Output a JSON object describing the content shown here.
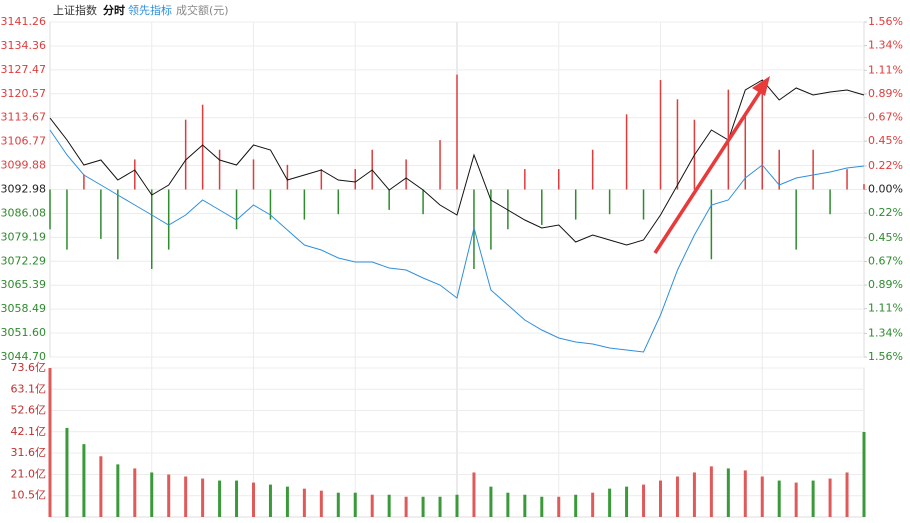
{
  "header": {
    "mode": "分时"
  },
  "chart_data": [
    {
      "type": "line",
      "ylim": [
        3044.7,
        3141.26
      ],
      "yticks": [
        3141.26,
        3134.36,
        3127.47,
        3120.57,
        3113.67,
        3106.77,
        3099.88,
        3092.98,
        3086.08,
        3079.19,
        3072.29,
        3065.39,
        3058.49,
        {
          "value": 3051.6,
          "label": "3051.60"
        },
        {
          "value": 3044.7,
          "label": "3044.70"
        }
      ],
      "y2lim": [
        -1.56,
        1.56
      ],
      "y2ticks": [
        {
          "value": 1.56,
          "label": "1.56%"
        },
        {
          "value": 1.34,
          "label": "1.34%"
        },
        {
          "value": 1.11,
          "label": "1.11%"
        },
        {
          "value": 0.89,
          "label": "0.89%"
        },
        {
          "value": 0.67,
          "label": "0.67%"
        },
        {
          "value": 0.45,
          "label": "0.45%"
        },
        {
          "value": 0.22,
          "label": "0.22%"
        },
        {
          "value": 0,
          "label": "0.00%"
        },
        {
          "value": -0.22,
          "label": "0.22%"
        },
        {
          "value": -0.45,
          "label": "0.45%"
        },
        {
          "value": -0.67,
          "label": "0.67%"
        },
        {
          "value": -0.89,
          "label": "0.89%"
        },
        {
          "value": -1.11,
          "label": "1.11%"
        },
        {
          "value": -1.34,
          "label": "1.34%"
        },
        {
          "value": -1.56,
          "label": "1.56%"
        }
      ],
      "colors": [
        "#e03c3c",
        "#2e8b2e"
      ],
      "series": [
        {
          "name": "上证指数",
          "color": "#111111",
          "values": [
            3113.59,
            3107.25,
            3100.04,
            3101.48,
            3095.72,
            3098.6,
            3091.39,
            3094.28,
            3101.48,
            3105.81,
            3101.48,
            3100.04,
            3105.81,
            3104.37,
            3095.72,
            3097.16,
            3098.6,
            3095.72,
            3095.14,
            3098.6,
            3092.84,
            3096.29,
            3092.84,
            3088.51,
            3085.63,
            3102.92,
            3089.95,
            3087.07,
            3084.19,
            3081.88,
            3082.75,
            3077.85,
            3079.86,
            3078.42,
            3076.98,
            3078.42,
            3085.63,
            3094.28,
            3102.92,
            3110.13,
            3107.25,
            3121.66,
            3124.54,
            3118.78,
            3122.24,
            3120.22,
            3121.08,
            3121.66,
            3120.22
          ]
        },
        {
          "name": "领先指标",
          "color": "#2f8fdd",
          "values": [
            3110.13,
            3102.92,
            3097.16,
            3094.28,
            3091.39,
            3088.51,
            3085.63,
            3082.75,
            3085.63,
            3089.95,
            3087.07,
            3084.19,
            3088.51,
            3085.63,
            3081.31,
            3076.98,
            3075.54,
            3073.24,
            3072.08,
            3072.08,
            3070.35,
            3069.78,
            3067.47,
            3065.45,
            3061.71,
            3081.88,
            3064.01,
            3059.69,
            3055.36,
            3052.48,
            3050.18,
            3049.02,
            3048.45,
            3047.29,
            3046.72,
            3046.14,
            3056.81,
            3069.78,
            3079.86,
            3088.51,
            3089.95,
            3096.29,
            3100.04,
            3094.28,
            3096.29,
            3097.16,
            3098.02,
            3099.18,
            3099.75
          ]
        },
        {
          "type": "bar",
          "axis": "y2",
          "values": [
            -0.37,
            -0.56,
            0.14,
            -0.46,
            -0.65,
            0.28,
            -0.74,
            -0.56,
            0.65,
            0.79,
            0.37,
            -0.37,
            0.28,
            -0.28,
            0.23,
            -0.28,
            0.19,
            -0.23,
            0.19,
            0.37,
            -0.19,
            0.28,
            -0.23,
            0.46,
            1.07,
            -0.74,
            -0.56,
            -0.37,
            0.19,
            -0.33,
            0.19,
            -0.28,
            0.37,
            -0.23,
            0.7,
            -0.28,
            1.02,
            0.84,
            0.65,
            -0.65,
            0.93,
            0.7,
            1.02,
            0.37,
            -0.56,
            0.37,
            -0.23,
            0.19,
            0.05
          ]
        }
      ]
    },
    {
      "type": "bar",
      "title": "成交额(元)",
      "ylim": [
        0,
        73.6
      ],
      "yticks": [
        {
          "value": 73.6,
          "label": "73.6亿"
        },
        {
          "value": 63.1,
          "label": "63.1亿"
        },
        {
          "value": 52.6,
          "label": "52.6亿"
        },
        {
          "value": 42.1,
          "label": "42.1亿"
        },
        {
          "value": 31.6,
          "label": "31.6亿"
        },
        {
          "value": 21,
          "label": "21.0亿"
        },
        {
          "value": 10.5,
          "label": "10.5亿"
        }
      ],
      "colors": [
        "#e05a5a",
        "#3a9a3a"
      ],
      "values": [
        73.6,
        44,
        36,
        30,
        26,
        24,
        22,
        21,
        20,
        19,
        18,
        18,
        17,
        16,
        15,
        14,
        13,
        12,
        12,
        11,
        11,
        10,
        10,
        10,
        11,
        22,
        15,
        12,
        11,
        10,
        10,
        11,
        12,
        14,
        15,
        16,
        18,
        20,
        22,
        25,
        24,
        23,
        20,
        18,
        17,
        18,
        19,
        22,
        42
      ]
    }
  ]
}
